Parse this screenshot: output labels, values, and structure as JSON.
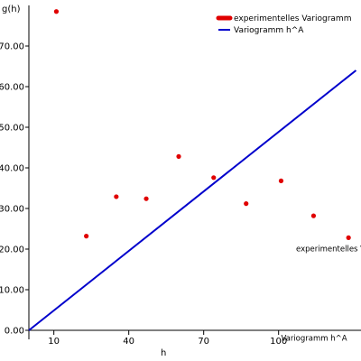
{
  "chart_data": {
    "type": "scatter",
    "xlabel": "h",
    "ylabel": "g(h)",
    "xlim": [
      0,
      133
    ],
    "ylim": [
      0,
      80
    ],
    "x_ticks": [
      10,
      40,
      70,
      100
    ],
    "y_ticks": [
      0,
      10,
      20,
      30,
      40,
      50,
      60,
      70
    ],
    "x_tick_labels": [
      "10",
      "40",
      "70",
      "100"
    ],
    "y_tick_labels": [
      "0.00",
      "10.00",
      "20.00",
      "30.00",
      "40.00",
      "50.00",
      "60.00",
      "70.00"
    ],
    "grid": false,
    "legend_position": "top-right",
    "series": [
      {
        "name": "experimentelles Variogramm",
        "kind": "points",
        "color": "#e00000",
        "x": [
          11,
          23,
          35,
          47,
          60,
          74,
          87,
          101,
          114,
          128
        ],
        "y": [
          78.5,
          23.2,
          32.9,
          32.4,
          42.8,
          37.6,
          31.2,
          36.8,
          28.2,
          22.8
        ]
      },
      {
        "name": "Variogramm h^A",
        "kind": "line",
        "color": "#0000cc",
        "x": [
          0,
          131
        ],
        "y": [
          0,
          64
        ]
      }
    ],
    "annotations": [
      {
        "text": "experimentelles Variogramm",
        "x": 107,
        "y": 19.5
      },
      {
        "text": "Variogramm h^A",
        "x": 101,
        "y": -2.6
      }
    ]
  }
}
